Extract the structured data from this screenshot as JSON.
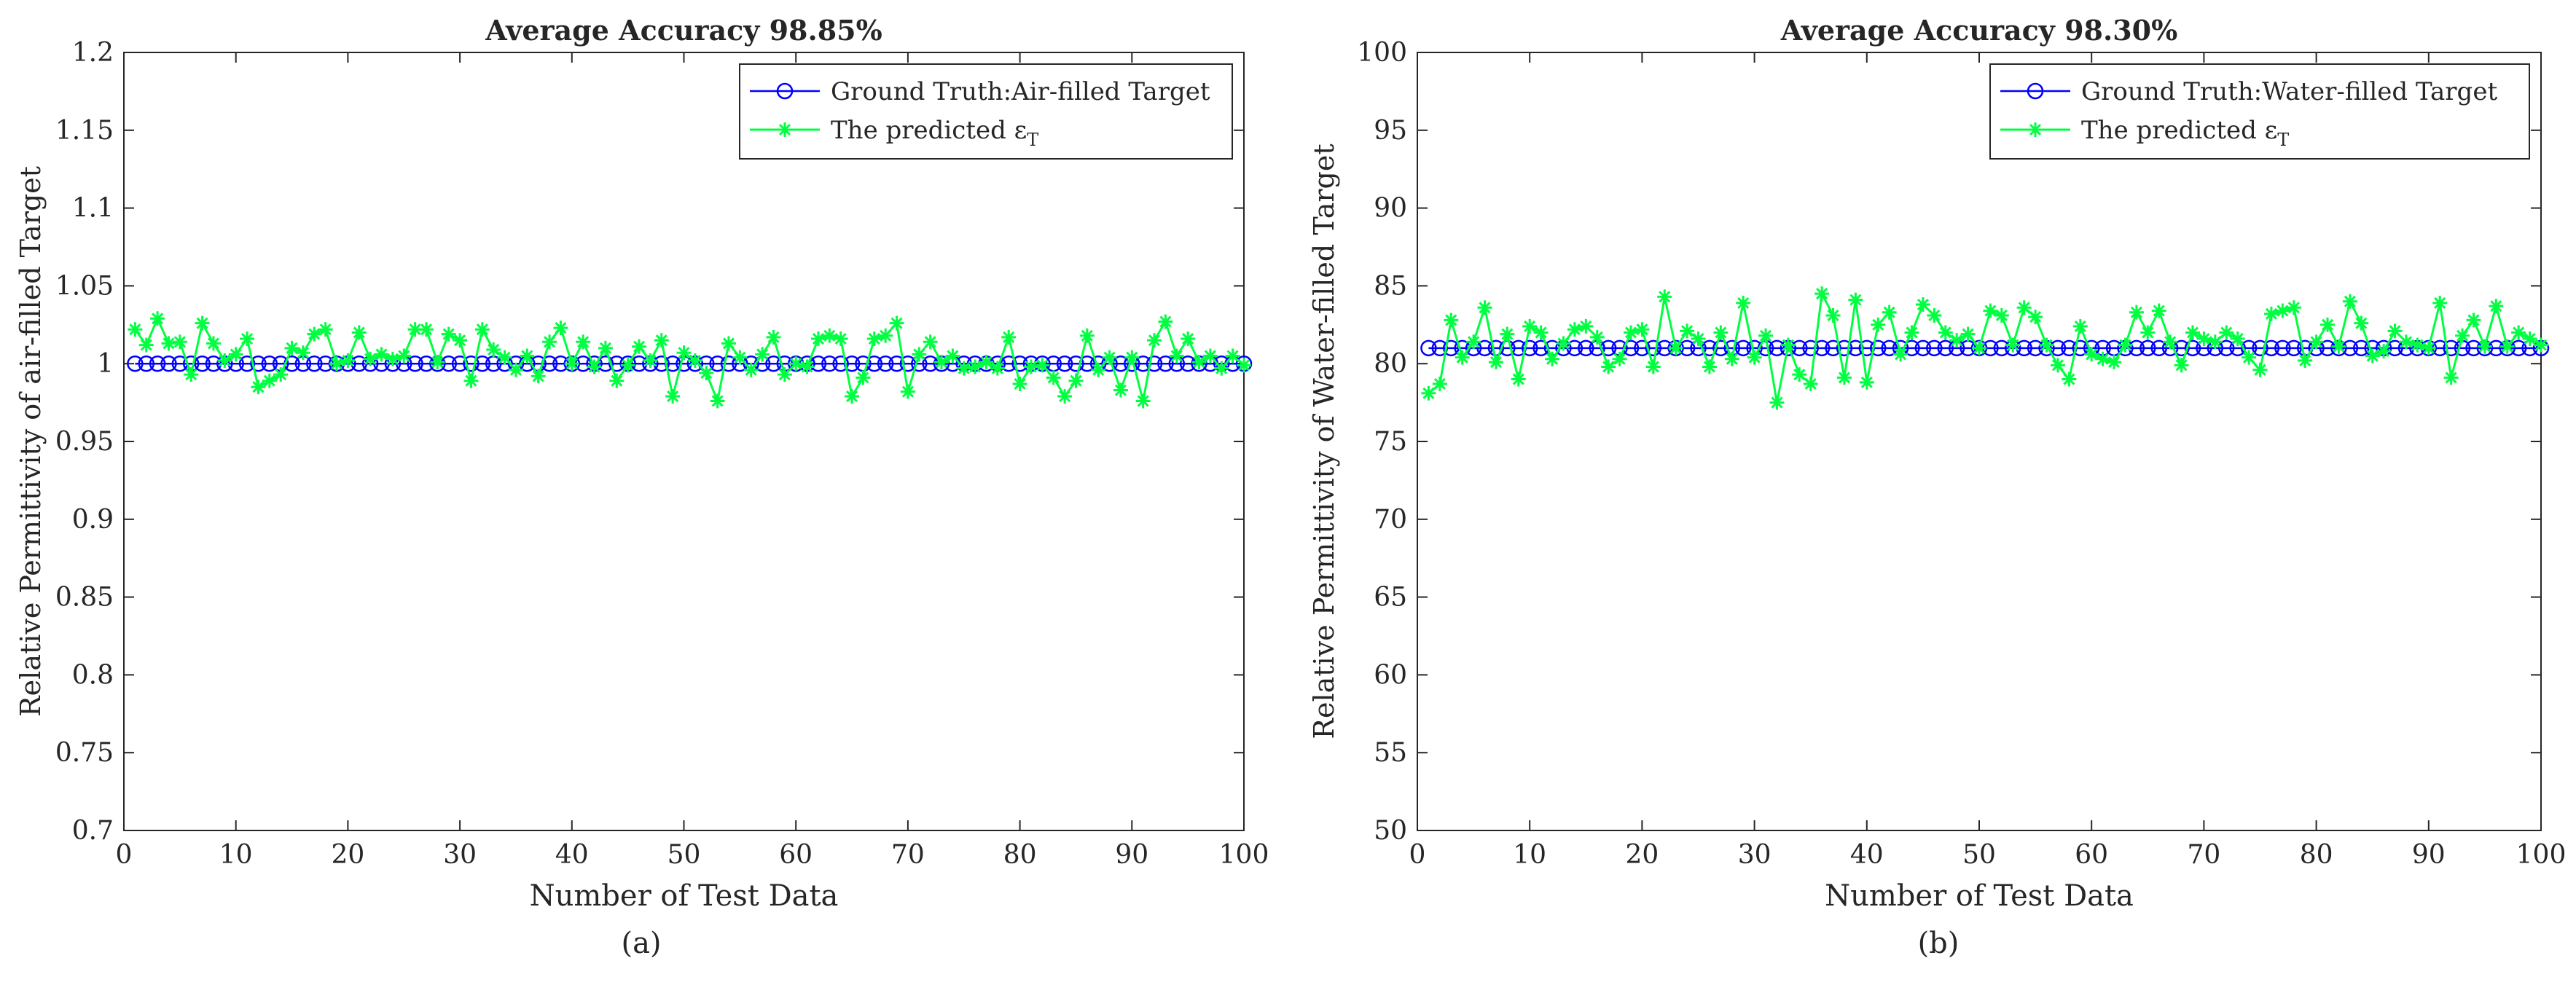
{
  "colors": {
    "ground_truth": "#0000ff",
    "predicted": "#00ff40",
    "axis": "#262626",
    "text": "#262626"
  },
  "chart_data": [
    {
      "type": "line",
      "panel_label": "(a)",
      "title": "Average Accuracy 98.85%",
      "xlabel": "Number of Test Data",
      "ylabel": "Relative Permittivity of air-filled Target",
      "xlim": [
        0,
        100
      ],
      "ylim": [
        0.7,
        1.2
      ],
      "xticks": [
        0,
        10,
        20,
        30,
        40,
        50,
        60,
        70,
        80,
        90,
        100
      ],
      "yticks": [
        0.7,
        0.75,
        0.8,
        0.85,
        0.9,
        0.95,
        1,
        1.05,
        1.1,
        1.15,
        1.2
      ],
      "ytick_labels": [
        "0.7",
        "0.75",
        "0.8",
        "0.85",
        "0.9",
        "0.95",
        "1",
        "1.05",
        "1.1",
        "1.15",
        "1.2"
      ],
      "xtick_labels": [
        "0",
        "10",
        "20",
        "30",
        "40",
        "50",
        "60",
        "70",
        "80",
        "90",
        "100"
      ],
      "legend": {
        "placement": "top-right",
        "entries": [
          "Ground Truth:Air-filled Target",
          "The predicted ε"
        ],
        "subscript": "T"
      },
      "series": [
        {
          "name": "Ground Truth:Air-filled Target",
          "marker": "circle",
          "constant_value": 1,
          "x_start": 1,
          "x_end": 100
        },
        {
          "name": "The predicted ε_T",
          "marker": "asterisk",
          "x_start": 1,
          "values": [
            1.022,
            1.012,
            1.029,
            1.013,
            1.014,
            0.993,
            1.026,
            1.013,
            1.002,
            1.006,
            1.016,
            0.985,
            0.989,
            0.993,
            1.01,
            1.007,
            1.019,
            1.022,
            1.0,
            1.002,
            1.02,
            1.003,
            1.006,
            1.003,
            1.005,
            1.022,
            1.022,
            1.001,
            1.019,
            1.015,
            0.989,
            1.022,
            1.009,
            1.004,
            0.996,
            1.005,
            0.992,
            1.014,
            1.023,
            1.0,
            1.014,
            0.998,
            1.01,
            0.989,
            0.999,
            1.011,
            1.002,
            1.015,
            0.979,
            1.007,
            1.002,
            0.994,
            0.976,
            1.013,
            1.004,
            0.996,
            1.006,
            1.017,
            0.993,
            1.0,
            0.998,
            1.016,
            1.018,
            1.016,
            0.979,
            0.991,
            1.016,
            1.018,
            1.026,
            0.982,
            1.006,
            1.014,
            1.001,
            1.005,
            0.997,
            0.998,
            1.001,
            0.997,
            1.017,
            0.987,
            0.998,
            0.999,
            0.991,
            0.979,
            0.989,
            1.018,
            0.996,
            1.004,
            0.983,
            1.004,
            0.976,
            1.015,
            1.027,
            1.005,
            1.016,
            1.001,
            1.005,
            0.997,
            1.005,
            0.999
          ]
        }
      ]
    },
    {
      "type": "line",
      "panel_label": "(b)",
      "title": "Average Accuracy 98.30%",
      "xlabel": "Number of Test Data",
      "ylabel": "Relative Permittivity of Water-filled Target",
      "xlim": [
        0,
        100
      ],
      "ylim": [
        50,
        100
      ],
      "xticks": [
        0,
        10,
        20,
        30,
        40,
        50,
        60,
        70,
        80,
        90,
        100
      ],
      "yticks": [
        50,
        55,
        60,
        65,
        70,
        75,
        80,
        85,
        90,
        95,
        100
      ],
      "ytick_labels": [
        "50",
        "55",
        "60",
        "65",
        "70",
        "75",
        "80",
        "85",
        "90",
        "95",
        "100"
      ],
      "xtick_labels": [
        "0",
        "10",
        "20",
        "30",
        "40",
        "50",
        "60",
        "70",
        "80",
        "90",
        "100"
      ],
      "legend": {
        "placement": "top-right",
        "entries": [
          "Ground Truth:Water-filled Target",
          "The predicted ε"
        ],
        "subscript": "T"
      },
      "series": [
        {
          "name": "Ground Truth:Water-filled Target",
          "marker": "circle",
          "constant_value": 81,
          "x_start": 1,
          "x_end": 100
        },
        {
          "name": "The predicted ε_T",
          "marker": "asterisk",
          "x_start": 1,
          "values": [
            78.1,
            78.7,
            82.8,
            80.4,
            81.4,
            83.6,
            80.1,
            81.9,
            79.0,
            82.4,
            82.0,
            80.3,
            81.3,
            82.2,
            82.4,
            81.7,
            79.8,
            80.3,
            82.0,
            82.2,
            79.8,
            84.3,
            81.0,
            82.1,
            81.6,
            79.8,
            82.0,
            80.3,
            83.9,
            80.4,
            81.8,
            77.5,
            81.2,
            79.3,
            78.7,
            84.5,
            83.1,
            79.1,
            84.1,
            78.8,
            82.5,
            83.3,
            80.6,
            82.0,
            83.8,
            83.1,
            82.0,
            81.5,
            81.9,
            81.0,
            83.4,
            83.1,
            81.2,
            83.6,
            83.0,
            81.2,
            79.9,
            79.0,
            82.4,
            80.6,
            80.3,
            80.1,
            81.2,
            83.3,
            82.0,
            83.4,
            81.4,
            79.9,
            82.0,
            81.6,
            81.4,
            82.0,
            81.6,
            80.4,
            79.6,
            83.2,
            83.4,
            83.6,
            80.2,
            81.4,
            82.5,
            81.1,
            84.0,
            82.6,
            80.5,
            80.8,
            82.1,
            81.4,
            81.2,
            81.0,
            83.9,
            79.1,
            81.8,
            82.8,
            81.1,
            83.7,
            81.1,
            82.0,
            81.6,
            81.2
          ]
        }
      ]
    }
  ]
}
